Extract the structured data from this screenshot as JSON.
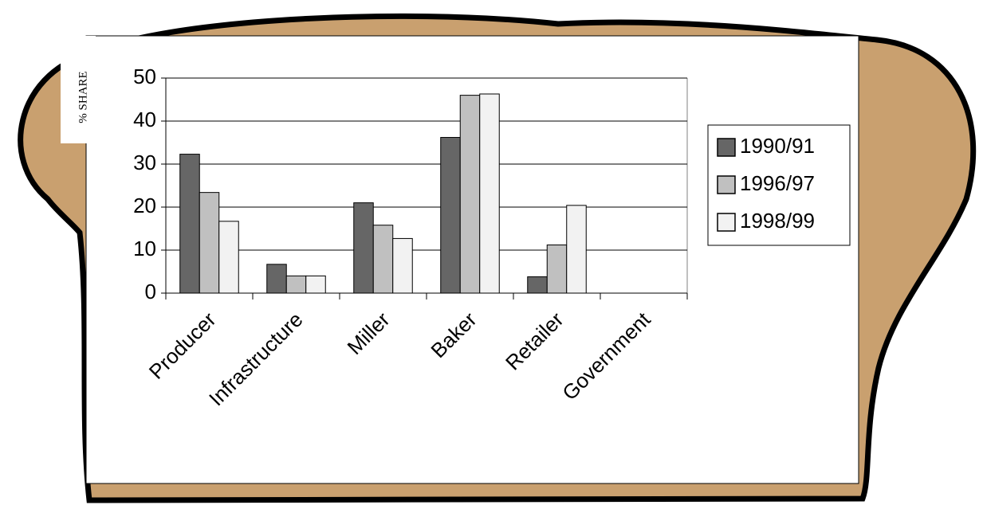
{
  "chart_data": {
    "type": "bar",
    "y_label": "% SHARE",
    "categories": [
      "Producer",
      "Infrastructure",
      "Miller",
      "Baker",
      "Retailer",
      "Government"
    ],
    "series": [
      {
        "name": "1990/91",
        "color": "#666666",
        "values": [
          32.3,
          6.7,
          21,
          36.2,
          3.8,
          0
        ]
      },
      {
        "name": "1996/97",
        "color": "#c0c0c0",
        "values": [
          23.4,
          4,
          15.8,
          46,
          11.2,
          0
        ]
      },
      {
        "name": "1998/99",
        "color": "#f2f2f2",
        "values": [
          16.7,
          4,
          12.7,
          46.3,
          20.4,
          0
        ]
      }
    ],
    "ylim": [
      0,
      50
    ],
    "yticks": [
      0,
      10,
      20,
      30,
      40,
      50
    ],
    "grid": true,
    "legend": "right"
  }
}
